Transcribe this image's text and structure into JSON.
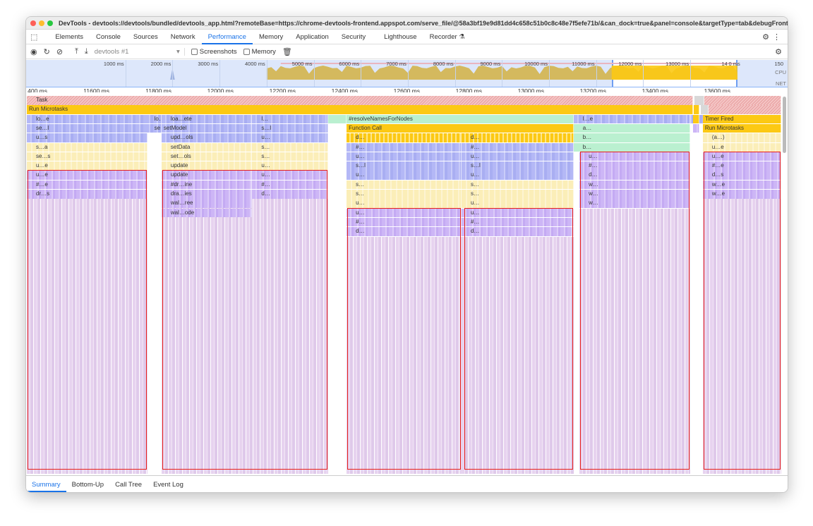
{
  "window": {
    "title": "DevTools - devtools://devtools/bundled/devtools_app.html?remoteBase=https://chrome-devtools-frontend.appspot.com/serve_file/@58a3bf19e9d81dd4c658c51b0c8c48e7f5efe71b/&can_dock=true&panel=console&targetType=tab&debugFrontend=true"
  },
  "tabs": [
    {
      "label": "Elements"
    },
    {
      "label": "Console"
    },
    {
      "label": "Sources"
    },
    {
      "label": "Network"
    },
    {
      "label": "Performance",
      "active": true
    },
    {
      "label": "Memory"
    },
    {
      "label": "Application"
    },
    {
      "label": "Security"
    },
    {
      "label": "Lighthouse"
    },
    {
      "label": "Recorder"
    }
  ],
  "toolbar": {
    "target": "devtools #1",
    "screenshots": "Screenshots",
    "memory": "Memory"
  },
  "overview": {
    "ticks": [
      "1000 ms",
      "2000 ms",
      "3000 ms",
      "4000 ms",
      "5000 ms",
      "6000 ms",
      "7000 ms",
      "8000 ms",
      "9000 ms",
      "10000 ms",
      "11000 ms",
      "12000 ms",
      "13000 ms",
      "14",
      "0 ms",
      "150"
    ],
    "cpu_label": "CPU",
    "net_label": "NET",
    "selection_ms": [
      11330,
      14000
    ]
  },
  "ruler": {
    "ticks": [
      "400 ms",
      "11600 ms",
      "11800 ms",
      "12000 ms",
      "12200 ms",
      "12400 ms",
      "12600 ms",
      "12800 ms",
      "13000 ms",
      "13200 ms",
      "13400 ms",
      "13600 ms"
    ]
  },
  "colors": {
    "accent": "#1a73e8",
    "highlight": "#e8201a",
    "scripting": "#fcc914",
    "rendering": "#cdb6f6"
  },
  "flame": {
    "blocks": [
      [
        0,
        11334,
        13480,
        "Task",
        "hatch"
      ],
      [
        0,
        13484,
        13515,
        "Task",
        "gray"
      ],
      [
        0,
        13515,
        13764,
        "",
        "hatch"
      ],
      [
        1,
        11334,
        13480,
        "Run Microtasks",
        "yellow"
      ],
      [
        1,
        13482,
        13500,
        "",
        "yellow"
      ],
      [
        1,
        13505,
        13530,
        "Task",
        "gray"
      ],
      [
        1,
        13530,
        13764,
        "",
        "hatch"
      ],
      [
        2,
        11334,
        13680,
        "lo…e",
        "blue"
      ],
      [
        2,
        11715,
        11768,
        "lo…e",
        "blue"
      ],
      [
        2,
        11768,
        12060,
        "loa…ete",
        "blue"
      ],
      [
        2,
        12060,
        12305,
        "l…",
        "blue"
      ],
      [
        2,
        12305,
        12364,
        "",
        "green"
      ],
      [
        2,
        12364,
        13095,
        "#resolveNamesForNodes",
        "green"
      ],
      [
        2,
        13095,
        13470,
        "l…e",
        "blue"
      ],
      [
        2,
        13480,
        13500,
        "",
        "yellow"
      ],
      [
        2,
        13511,
        13764,
        "Timer Fired",
        "yellow"
      ],
      [
        3,
        11334,
        11723,
        "se…l",
        "blue"
      ],
      [
        3,
        11715,
        11768,
        "se…l",
        "blue"
      ],
      [
        3,
        11768,
        12060,
        "setModel",
        "blue"
      ],
      [
        3,
        12060,
        12305,
        "s…l",
        "blue"
      ],
      [
        3,
        12364,
        13095,
        "Function Call",
        "yellow"
      ],
      [
        3,
        13095,
        13470,
        "a…",
        "green"
      ],
      [
        3,
        13480,
        13500,
        "",
        "purple"
      ],
      [
        3,
        13511,
        13764,
        "Run Microtasks",
        "yellow"
      ],
      [
        4,
        11334,
        11723,
        "u…s",
        "blue"
      ],
      [
        4,
        11768,
        12060,
        "upd…ols",
        "blue"
      ],
      [
        4,
        12060,
        12305,
        "u…",
        "blue"
      ],
      [
        4,
        12364,
        12734,
        "d…",
        "yelstripe"
      ],
      [
        4,
        12734,
        13095,
        "d…",
        "yelstripe"
      ],
      [
        4,
        13095,
        13470,
        "b…",
        "green"
      ],
      [
        4,
        13511,
        13764,
        "(a…)",
        "pale"
      ],
      [
        5,
        11334,
        11723,
        "s…a",
        "pale"
      ],
      [
        5,
        11768,
        12060,
        "setData",
        "pale"
      ],
      [
        5,
        12060,
        12305,
        "s…",
        "pale"
      ],
      [
        5,
        12364,
        12734,
        "#…",
        "blue"
      ],
      [
        5,
        12734,
        13095,
        "#…",
        "blue"
      ],
      [
        5,
        13095,
        13470,
        "b…",
        "green"
      ],
      [
        5,
        13511,
        13764,
        "u…e",
        "pale"
      ],
      [
        6,
        11334,
        11723,
        "se…s",
        "pale"
      ],
      [
        6,
        11768,
        12060,
        "set…ols",
        "pale"
      ],
      [
        6,
        12060,
        12305,
        "s…",
        "pale"
      ],
      [
        6,
        12364,
        12734,
        "u…",
        "blue"
      ],
      [
        6,
        12734,
        13095,
        "u…",
        "blue"
      ],
      [
        6,
        13114,
        13470,
        "u…",
        "purple"
      ],
      [
        6,
        13511,
        13764,
        "u…e",
        "purple"
      ],
      [
        7,
        11334,
        11723,
        "u…e",
        "pale"
      ],
      [
        7,
        11768,
        12060,
        "update",
        "pale"
      ],
      [
        7,
        12060,
        12305,
        "u…",
        "pale"
      ],
      [
        7,
        12364,
        12734,
        "s…l",
        "blue"
      ],
      [
        7,
        12734,
        13095,
        "s…l",
        "blue"
      ],
      [
        7,
        13114,
        13470,
        "#…",
        "purple"
      ],
      [
        7,
        13511,
        13764,
        "#…e",
        "purple"
      ],
      [
        8,
        11334,
        11723,
        "u…e",
        "purple"
      ],
      [
        8,
        11768,
        12060,
        "update",
        "purple"
      ],
      [
        8,
        12060,
        12305,
        "u…",
        "purple"
      ],
      [
        8,
        12364,
        12734,
        "u…",
        "blue"
      ],
      [
        8,
        12734,
        13095,
        "u…",
        "blue"
      ],
      [
        8,
        13114,
        13470,
        "d…",
        "purple"
      ],
      [
        8,
        13511,
        13764,
        "d…s",
        "purple"
      ],
      [
        9,
        11334,
        11723,
        "#…e",
        "purple"
      ],
      [
        9,
        11768,
        12060,
        "#dr…ine",
        "purple"
      ],
      [
        9,
        12060,
        12305,
        "#…",
        "purple"
      ],
      [
        9,
        12364,
        12734,
        "s…",
        "pale"
      ],
      [
        9,
        12734,
        13095,
        "s…",
        "pale"
      ],
      [
        9,
        13114,
        13470,
        "w…",
        "purple"
      ],
      [
        9,
        13511,
        13764,
        "w…e",
        "purple"
      ],
      [
        10,
        11334,
        11723,
        "dr…s",
        "purple"
      ],
      [
        10,
        11768,
        12060,
        "dra…ies",
        "purple"
      ],
      [
        10,
        12060,
        12305,
        "d…",
        "purple"
      ],
      [
        10,
        12364,
        12734,
        "s…",
        "pale"
      ],
      [
        10,
        12734,
        13095,
        "s…",
        "pale"
      ],
      [
        10,
        13114,
        13470,
        "w…",
        "purple"
      ],
      [
        10,
        13511,
        13764,
        "w…e",
        "purple"
      ],
      [
        11,
        11768,
        12060,
        "wal…ree",
        "purple"
      ],
      [
        11,
        12364,
        12734,
        "u…",
        "pale"
      ],
      [
        11,
        12734,
        13095,
        "u…",
        "pale"
      ],
      [
        11,
        13114,
        13470,
        "w…",
        "purple"
      ],
      [
        12,
        11768,
        12060,
        "wal…ode",
        "purple"
      ],
      [
        12,
        12364,
        12734,
        "u…",
        "purple"
      ],
      [
        12,
        12734,
        13095,
        "u…",
        "purple"
      ],
      [
        13,
        12364,
        12734,
        "#…",
        "purple"
      ],
      [
        13,
        12734,
        13095,
        "#…",
        "purple"
      ],
      [
        14,
        12364,
        12734,
        "d…",
        "purple"
      ],
      [
        14,
        12734,
        13095,
        "d…",
        "purple"
      ]
    ],
    "deep_stacks": [
      [
        11334,
        11723,
        11
      ],
      [
        11768,
        12305,
        11
      ],
      [
        12364,
        12734,
        15
      ],
      [
        12734,
        13095,
        15
      ],
      [
        13114,
        13470,
        12
      ],
      [
        13511,
        13764,
        11
      ]
    ],
    "highlighted": [
      [
        11334,
        11723,
        8
      ],
      [
        11768,
        12305,
        8
      ],
      [
        12364,
        12734,
        12
      ],
      [
        12741,
        13095,
        12
      ],
      [
        13114,
        13470,
        6
      ],
      [
        13511,
        13764,
        6
      ]
    ]
  },
  "bottom_tabs": [
    {
      "label": "Summary",
      "active": true
    },
    {
      "label": "Bottom-Up"
    },
    {
      "label": "Call Tree"
    },
    {
      "label": "Event Log"
    }
  ]
}
